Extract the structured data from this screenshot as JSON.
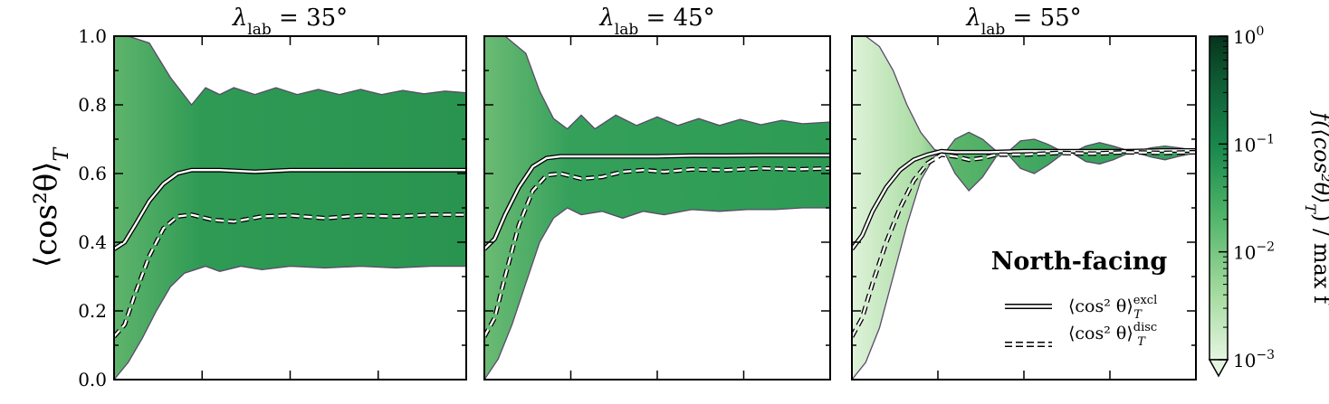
{
  "chart_data": {
    "type": "area",
    "ylabel": "⟨cos²θ⟩",
    "ylabel_sub": "T",
    "ylim": [
      0,
      1
    ],
    "yticks": [
      "0.0",
      "0.2",
      "0.4",
      "0.6",
      "0.8",
      "1.0"
    ],
    "x_tick_labels_shown": false,
    "x_range": [
      0,
      1
    ],
    "panels": [
      {
        "title_var": "λ",
        "title_sub": "lab",
        "title_value": " = 35°",
        "envelope_upper": [
          [
            0,
            1.0
          ],
          [
            0.04,
            1.0
          ],
          [
            0.1,
            0.98
          ],
          [
            0.16,
            0.88
          ],
          [
            0.22,
            0.8
          ],
          [
            0.26,
            0.85
          ],
          [
            0.3,
            0.83
          ],
          [
            0.34,
            0.85
          ],
          [
            0.4,
            0.83
          ],
          [
            0.46,
            0.85
          ],
          [
            0.52,
            0.83
          ],
          [
            0.58,
            0.845
          ],
          [
            0.64,
            0.83
          ],
          [
            0.7,
            0.845
          ],
          [
            0.76,
            0.83
          ],
          [
            0.82,
            0.842
          ],
          [
            0.88,
            0.832
          ],
          [
            0.94,
            0.84
          ],
          [
            1.0,
            0.835
          ]
        ],
        "envelope_lower": [
          [
            0,
            0.0
          ],
          [
            0.04,
            0.05
          ],
          [
            0.08,
            0.12
          ],
          [
            0.12,
            0.2
          ],
          [
            0.16,
            0.27
          ],
          [
            0.2,
            0.31
          ],
          [
            0.26,
            0.33
          ],
          [
            0.3,
            0.315
          ],
          [
            0.36,
            0.33
          ],
          [
            0.42,
            0.32
          ],
          [
            0.5,
            0.33
          ],
          [
            0.6,
            0.325
          ],
          [
            0.7,
            0.33
          ],
          [
            0.8,
            0.325
          ],
          [
            0.9,
            0.33
          ],
          [
            1.0,
            0.33
          ]
        ],
        "excl": [
          [
            0,
            0.38
          ],
          [
            0.03,
            0.4
          ],
          [
            0.06,
            0.45
          ],
          [
            0.1,
            0.52
          ],
          [
            0.14,
            0.57
          ],
          [
            0.18,
            0.6
          ],
          [
            0.22,
            0.61
          ],
          [
            0.3,
            0.61
          ],
          [
            0.4,
            0.605
          ],
          [
            0.5,
            0.61
          ],
          [
            0.6,
            0.61
          ],
          [
            0.7,
            0.61
          ],
          [
            0.8,
            0.61
          ],
          [
            0.9,
            0.61
          ],
          [
            1.0,
            0.61
          ]
        ],
        "disc": [
          [
            0,
            0.125
          ],
          [
            0.03,
            0.16
          ],
          [
            0.06,
            0.25
          ],
          [
            0.1,
            0.36
          ],
          [
            0.14,
            0.44
          ],
          [
            0.18,
            0.475
          ],
          [
            0.22,
            0.48
          ],
          [
            0.28,
            0.465
          ],
          [
            0.34,
            0.46
          ],
          [
            0.42,
            0.475
          ],
          [
            0.5,
            0.478
          ],
          [
            0.6,
            0.47
          ],
          [
            0.7,
            0.478
          ],
          [
            0.8,
            0.475
          ],
          [
            0.9,
            0.48
          ],
          [
            1.0,
            0.48
          ]
        ]
      },
      {
        "title_var": "λ",
        "title_sub": "lab",
        "title_value": " = 45°",
        "envelope_upper": [
          [
            0,
            1.0
          ],
          [
            0.06,
            1.0
          ],
          [
            0.12,
            0.95
          ],
          [
            0.16,
            0.84
          ],
          [
            0.2,
            0.76
          ],
          [
            0.24,
            0.73
          ],
          [
            0.28,
            0.77
          ],
          [
            0.32,
            0.73
          ],
          [
            0.38,
            0.77
          ],
          [
            0.44,
            0.74
          ],
          [
            0.5,
            0.765
          ],
          [
            0.56,
            0.74
          ],
          [
            0.62,
            0.76
          ],
          [
            0.68,
            0.74
          ],
          [
            0.74,
            0.758
          ],
          [
            0.8,
            0.742
          ],
          [
            0.86,
            0.755
          ],
          [
            0.92,
            0.745
          ],
          [
            1.0,
            0.75
          ]
        ],
        "envelope_lower": [
          [
            0,
            0.0
          ],
          [
            0.04,
            0.06
          ],
          [
            0.08,
            0.16
          ],
          [
            0.12,
            0.28
          ],
          [
            0.16,
            0.4
          ],
          [
            0.2,
            0.47
          ],
          [
            0.24,
            0.5
          ],
          [
            0.28,
            0.48
          ],
          [
            0.34,
            0.49
          ],
          [
            0.4,
            0.47
          ],
          [
            0.46,
            0.49
          ],
          [
            0.52,
            0.48
          ],
          [
            0.6,
            0.495
          ],
          [
            0.68,
            0.49
          ],
          [
            0.76,
            0.495
          ],
          [
            0.84,
            0.495
          ],
          [
            0.92,
            0.5
          ],
          [
            1.0,
            0.5
          ]
        ],
        "excl": [
          [
            0,
            0.38
          ],
          [
            0.03,
            0.41
          ],
          [
            0.06,
            0.48
          ],
          [
            0.1,
            0.56
          ],
          [
            0.14,
            0.62
          ],
          [
            0.18,
            0.645
          ],
          [
            0.22,
            0.65
          ],
          [
            0.3,
            0.65
          ],
          [
            0.4,
            0.65
          ],
          [
            0.5,
            0.65
          ],
          [
            0.6,
            0.652
          ],
          [
            0.7,
            0.652
          ],
          [
            0.8,
            0.653
          ],
          [
            0.9,
            0.653
          ],
          [
            1.0,
            0.653
          ]
        ],
        "disc": [
          [
            0,
            0.125
          ],
          [
            0.03,
            0.18
          ],
          [
            0.06,
            0.3
          ],
          [
            0.1,
            0.45
          ],
          [
            0.14,
            0.55
          ],
          [
            0.18,
            0.595
          ],
          [
            0.22,
            0.6
          ],
          [
            0.28,
            0.585
          ],
          [
            0.34,
            0.59
          ],
          [
            0.4,
            0.605
          ],
          [
            0.46,
            0.61
          ],
          [
            0.52,
            0.605
          ],
          [
            0.6,
            0.612
          ],
          [
            0.7,
            0.61
          ],
          [
            0.8,
            0.615
          ],
          [
            0.9,
            0.612
          ],
          [
            1.0,
            0.615
          ]
        ]
      },
      {
        "title_var": "λ",
        "title_sub": "lab",
        "title_value": " = 55°",
        "envelope_upper": [
          [
            0,
            1.0
          ],
          [
            0.04,
            1.0
          ],
          [
            0.08,
            0.97
          ],
          [
            0.12,
            0.9
          ],
          [
            0.16,
            0.8
          ],
          [
            0.2,
            0.72
          ],
          [
            0.24,
            0.67
          ],
          [
            0.27,
            0.66
          ],
          [
            0.3,
            0.7
          ],
          [
            0.34,
            0.72
          ],
          [
            0.38,
            0.7
          ],
          [
            0.42,
            0.665
          ],
          [
            0.45,
            0.66
          ],
          [
            0.49,
            0.695
          ],
          [
            0.53,
            0.7
          ],
          [
            0.57,
            0.685
          ],
          [
            0.61,
            0.665
          ],
          [
            0.64,
            0.66
          ],
          [
            0.68,
            0.68
          ],
          [
            0.72,
            0.69
          ],
          [
            0.76,
            0.68
          ],
          [
            0.8,
            0.668
          ],
          [
            0.83,
            0.665
          ],
          [
            0.87,
            0.675
          ],
          [
            0.91,
            0.68
          ],
          [
            0.95,
            0.675
          ],
          [
            1.0,
            0.668
          ]
        ],
        "envelope_lower": [
          [
            0,
            0.0
          ],
          [
            0.04,
            0.05
          ],
          [
            0.08,
            0.15
          ],
          [
            0.12,
            0.3
          ],
          [
            0.16,
            0.45
          ],
          [
            0.2,
            0.58
          ],
          [
            0.24,
            0.65
          ],
          [
            0.27,
            0.66
          ],
          [
            0.3,
            0.6
          ],
          [
            0.34,
            0.55
          ],
          [
            0.38,
            0.59
          ],
          [
            0.42,
            0.65
          ],
          [
            0.45,
            0.66
          ],
          [
            0.49,
            0.615
          ],
          [
            0.53,
            0.6
          ],
          [
            0.57,
            0.625
          ],
          [
            0.61,
            0.655
          ],
          [
            0.64,
            0.66
          ],
          [
            0.68,
            0.635
          ],
          [
            0.72,
            0.628
          ],
          [
            0.76,
            0.64
          ],
          [
            0.8,
            0.658
          ],
          [
            0.83,
            0.66
          ],
          [
            0.87,
            0.648
          ],
          [
            0.91,
            0.64
          ],
          [
            0.95,
            0.65
          ],
          [
            1.0,
            0.66
          ]
        ],
        "excl": [
          [
            0,
            0.38
          ],
          [
            0.03,
            0.42
          ],
          [
            0.06,
            0.49
          ],
          [
            0.1,
            0.56
          ],
          [
            0.14,
            0.61
          ],
          [
            0.18,
            0.64
          ],
          [
            0.22,
            0.655
          ],
          [
            0.26,
            0.665
          ],
          [
            0.3,
            0.662
          ],
          [
            0.4,
            0.662
          ],
          [
            0.5,
            0.665
          ],
          [
            0.6,
            0.665
          ],
          [
            0.7,
            0.665
          ],
          [
            0.8,
            0.665
          ],
          [
            0.9,
            0.667
          ],
          [
            1.0,
            0.667
          ]
        ],
        "disc": [
          [
            0,
            0.125
          ],
          [
            0.03,
            0.18
          ],
          [
            0.06,
            0.28
          ],
          [
            0.1,
            0.4
          ],
          [
            0.14,
            0.5
          ],
          [
            0.18,
            0.58
          ],
          [
            0.22,
            0.63
          ],
          [
            0.26,
            0.655
          ],
          [
            0.3,
            0.65
          ],
          [
            0.34,
            0.64
          ],
          [
            0.38,
            0.645
          ],
          [
            0.42,
            0.655
          ],
          [
            0.5,
            0.655
          ],
          [
            0.6,
            0.66
          ],
          [
            0.7,
            0.658
          ],
          [
            0.8,
            0.662
          ],
          [
            0.9,
            0.66
          ],
          [
            1.0,
            0.662
          ]
        ]
      }
    ],
    "legend": {
      "title": "North-facing",
      "placement": "lower-right of third panel",
      "entries": [
        {
          "style": "solid-white-outlined",
          "label_base": "⟨cos² θ⟩",
          "label_sub": "T",
          "label_sup": "excl"
        },
        {
          "style": "dashed-white-outlined",
          "label_base": "⟨cos² θ⟩",
          "label_sub": "T",
          "label_sup": "disc"
        }
      ]
    },
    "colorbar": {
      "scale": "log",
      "range": [
        0.001,
        1
      ],
      "ticks": [
        {
          "base": "10",
          "exp": "0"
        },
        {
          "base": "10",
          "exp": "−1"
        },
        {
          "base": "10",
          "exp": "−2"
        },
        {
          "base": "10",
          "exp": "−3"
        }
      ],
      "label": "f(⟨cos²θ⟩",
      "label_sub": "T",
      "label_tail": ") / max f",
      "extend": "min",
      "colors": [
        "#e4f5e0",
        "#a6dba0",
        "#4fb368",
        "#1b8a4e",
        "#0f5e35",
        "#07331d"
      ]
    }
  }
}
